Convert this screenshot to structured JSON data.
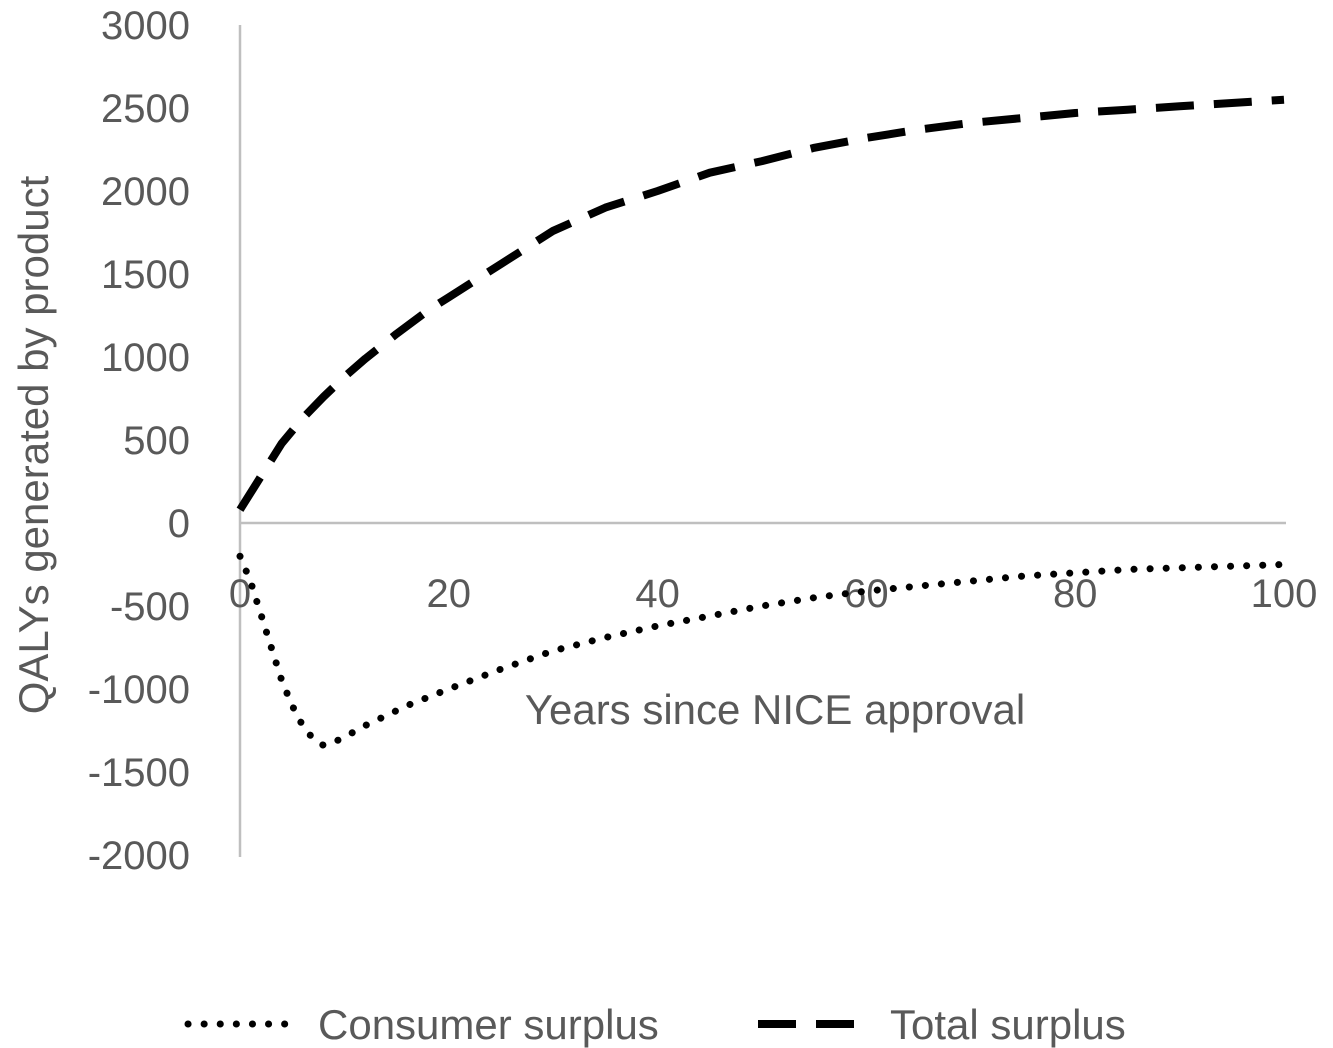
{
  "chart_data": {
    "type": "line",
    "xlabel": "Years since NICE approval",
    "ylabel": "QALYs generated by product",
    "xlim": [
      0,
      100
    ],
    "ylim": [
      -2000,
      3000
    ],
    "x_ticks": [
      0,
      20,
      40,
      60,
      80,
      100
    ],
    "y_ticks": [
      3000,
      2500,
      2000,
      1500,
      1000,
      500,
      0,
      -500,
      -1000,
      -1500,
      -2000
    ],
    "grid": false,
    "legend": "bottom",
    "series": [
      {
        "name": "Consumer surplus",
        "style": "dotted",
        "color": "#000000",
        "x": [
          0,
          1,
          2,
          3,
          4,
          5,
          6,
          7,
          8,
          9,
          10,
          12,
          14,
          16,
          18,
          20,
          25,
          30,
          35,
          40,
          45,
          50,
          55,
          60,
          65,
          70,
          75,
          80,
          85,
          90,
          95,
          100
        ],
        "y": [
          -200,
          -350,
          -550,
          -750,
          -950,
          -1100,
          -1220,
          -1300,
          -1340,
          -1320,
          -1290,
          -1220,
          -1160,
          -1100,
          -1050,
          -1000,
          -880,
          -770,
          -690,
          -620,
          -560,
          -500,
          -450,
          -410,
          -380,
          -350,
          -320,
          -300,
          -280,
          -270,
          -260,
          -250
        ]
      },
      {
        "name": "Total surplus",
        "style": "dashed",
        "color": "#000000",
        "x": [
          0,
          2,
          4,
          6,
          8,
          10,
          12,
          15,
          18,
          20,
          25,
          30,
          35,
          40,
          45,
          50,
          55,
          60,
          65,
          70,
          75,
          80,
          85,
          90,
          95,
          100
        ],
        "y": [
          80,
          280,
          480,
          630,
          760,
          880,
          990,
          1140,
          1280,
          1360,
          1560,
          1760,
          1900,
          2000,
          2110,
          2180,
          2260,
          2320,
          2370,
          2410,
          2440,
          2470,
          2490,
          2510,
          2530,
          2550
        ]
      }
    ]
  }
}
